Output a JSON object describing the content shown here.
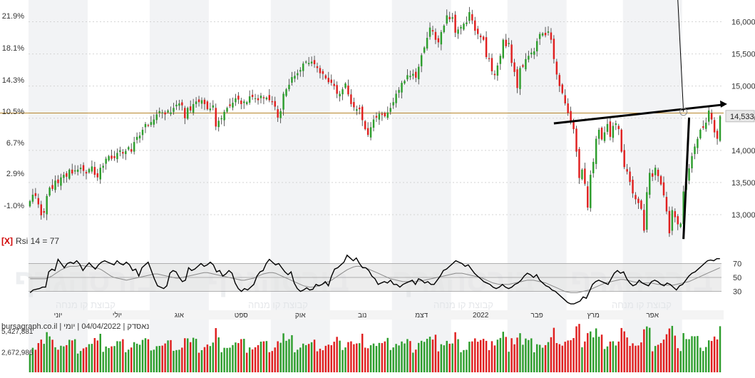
{
  "chart_data": {
    "type": "candlestick",
    "title": "",
    "watermark_lines": [
      "בורסהגרף",
      "קבוצת קו מנחה"
    ],
    "colors": {
      "up": "#2e9e2e",
      "down": "#e02020",
      "wick": "#333333",
      "band_fill": "#e6e6e6",
      "price_line": "#b8862b",
      "rsi_line": "#000000",
      "rsi_ma_line": "#8a8a8a",
      "trendline": "#000000",
      "axis_text": "#333333",
      "month_band": "#f2f3f5"
    },
    "price_panel": {
      "right_axis": {
        "min": 12700,
        "max": 16250,
        "ticks": [
          "16,000",
          "15,500",
          "15,000",
          "14,500",
          "14,000",
          "13,500",
          "13,000"
        ]
      },
      "left_axis_ticks": [
        "21.9%",
        "18.1%",
        "14.3%",
        "10.5%",
        "6.7%",
        "2.9%",
        "-1.0%"
      ],
      "last_price_label": "14,533",
      "reference_line_value": 14580,
      "trendline_up": {
        "from": {
          "bar": 186,
          "price": 14420
        },
        "to": {
          "bar": 246,
          "price": 14710
        }
      },
      "trendline_vertical": {
        "from": {
          "bar": 232,
          "price": 12620
        },
        "to": {
          "bar": 234,
          "price": 14510
        }
      },
      "trendline_thin": {
        "from": {
          "bar": 230,
          "price": 16350
        },
        "to": {
          "bar": 232,
          "price": 14600
        }
      },
      "closes": [
        13210,
        13310,
        13290,
        13160,
        12990,
        13030,
        13290,
        13420,
        13400,
        13530,
        13490,
        13580,
        13620,
        13590,
        13700,
        13640,
        13690,
        13700,
        13730,
        13680,
        13640,
        13710,
        13750,
        13620,
        13580,
        13730,
        13760,
        13870,
        13910,
        13870,
        13880,
        13960,
        14000,
        13950,
        13990,
        14050,
        13980,
        14130,
        14210,
        14230,
        14320,
        14410,
        14380,
        14440,
        14480,
        14560,
        14610,
        14590,
        14560,
        14620,
        14590,
        14660,
        14710,
        14730,
        14700,
        14500,
        14660,
        14620,
        14720,
        14760,
        14750,
        14780,
        14720,
        14640,
        14650,
        14700,
        14370,
        14460,
        14500,
        14600,
        14660,
        14690,
        14740,
        14810,
        14790,
        14720,
        14760,
        14750,
        14840,
        14830,
        14810,
        14780,
        14850,
        14810,
        14820,
        14780,
        14750,
        14680,
        14510,
        14610,
        14880,
        14950,
        15020,
        15140,
        15160,
        15200,
        15250,
        15350,
        15380,
        15360,
        15380,
        15340,
        15280,
        15200,
        15190,
        15120,
        15060,
        15050,
        15000,
        14880,
        14880,
        14950,
        15040,
        14870,
        14720,
        14670,
        14640,
        14640,
        14470,
        14330,
        14240,
        14360,
        14480,
        14510,
        14570,
        14550,
        14530,
        14590,
        14660,
        14750,
        14880,
        14940,
        15050,
        15080,
        15170,
        15160,
        15190,
        15130,
        15300,
        15480,
        15600,
        15750,
        15910,
        15850,
        15720,
        15680,
        15840,
        15940,
        16100,
        16040,
        16070,
        15830,
        15880,
        15920,
        15970,
        15990,
        16150,
        16020,
        15860,
        15810,
        15760,
        15720,
        15450,
        15420,
        15230,
        15170,
        15320,
        15470,
        15720,
        15620,
        15670,
        15360,
        15220,
        14970,
        15280,
        15300,
        15420,
        15470,
        15520,
        15540,
        15700,
        15810,
        15820,
        15790,
        15850,
        15720,
        15420,
        15180,
        15000,
        14890,
        14730,
        14580,
        14460,
        14330,
        13980,
        13570,
        13700,
        13480,
        13110,
        13620,
        13820,
        14180,
        14320,
        14170,
        14280,
        14410,
        14210,
        14380,
        14420,
        14330,
        13980,
        13740,
        13670,
        13510,
        13330,
        13240,
        13180,
        13090,
        12750,
        13350,
        13650,
        13590,
        13730,
        13600,
        13470,
        13300,
        13050,
        12710,
        13070,
        12960,
        12850,
        12860,
        13360,
        13560,
        13720,
        13910,
        14060,
        14180,
        14320,
        14350,
        14430,
        14620,
        14480,
        14280,
        14180,
        14533
      ]
    },
    "rsi_panel": {
      "label": "Rsi 14 = 77",
      "close_box_label": "[X]",
      "axis_min": 10,
      "axis_max": 90,
      "ticks": [
        "70",
        "50",
        "30"
      ],
      "band_low": 30,
      "band_high": 70,
      "values": [
        28,
        32,
        33,
        34,
        36,
        36,
        58,
        62,
        60,
        76,
        70,
        64,
        70,
        72,
        70,
        74,
        69,
        60,
        66,
        71,
        66,
        62,
        68,
        72,
        74,
        72,
        70,
        68,
        74,
        70,
        68,
        72,
        68,
        60,
        62,
        52,
        64,
        68,
        72,
        60,
        48,
        38,
        36,
        34,
        38,
        56,
        60,
        58,
        50,
        44,
        46,
        64,
        60,
        62,
        66,
        70,
        66,
        68,
        72,
        68,
        58,
        60,
        52,
        55,
        60,
        56,
        42,
        34,
        30,
        34,
        32,
        36,
        40,
        52,
        58,
        60,
        70,
        76,
        72,
        68,
        70,
        64,
        58,
        54,
        58,
        42,
        34,
        30,
        32,
        35,
        32,
        33,
        40,
        38,
        40,
        44,
        38,
        52,
        62,
        64,
        68,
        72,
        82,
        78,
        74,
        78,
        70,
        64,
        64,
        60,
        52,
        48,
        40,
        42,
        44,
        42,
        46,
        40,
        40,
        36,
        40,
        42,
        44,
        46,
        40,
        48,
        46,
        42,
        44,
        40,
        40,
        46,
        52,
        60,
        62,
        66,
        70,
        74,
        72,
        70,
        66,
        68,
        62,
        56,
        52,
        48,
        44,
        42,
        40,
        36,
        34,
        36,
        40,
        36,
        34,
        36,
        40,
        42,
        46,
        52,
        56,
        54,
        50,
        54,
        46,
        42,
        38,
        36,
        32,
        30,
        26,
        22,
        18,
        14,
        12,
        12,
        14,
        16,
        22,
        20,
        30,
        40,
        44,
        46,
        44,
        42,
        40,
        48,
        56,
        60,
        56,
        58,
        48,
        42,
        38,
        40,
        46,
        42,
        40,
        38,
        44,
        46,
        44,
        40,
        38,
        42,
        40,
        36,
        32,
        38,
        40,
        46,
        52,
        56,
        58,
        62,
        66,
        70,
        74,
        75,
        74,
        77,
        77
      ],
      "ma_values": [
        48,
        48,
        48,
        48,
        48,
        48,
        50,
        52,
        55,
        58,
        61,
        63,
        65,
        66,
        66,
        66,
        67,
        67,
        66,
        66,
        65,
        64,
        63,
        61,
        58,
        55,
        52,
        50,
        49,
        48,
        47,
        46,
        47,
        48,
        49,
        50,
        51,
        52,
        53,
        54,
        55,
        55,
        54,
        53,
        52,
        51,
        50,
        49,
        49,
        50,
        51,
        52,
        53,
        54,
        55,
        56,
        57,
        57,
        56,
        55,
        54,
        53,
        52,
        51,
        50,
        49,
        48,
        47,
        46,
        46,
        47,
        48,
        49,
        51,
        53,
        55,
        56,
        57,
        57,
        56,
        54,
        52,
        50,
        48,
        46,
        44,
        42,
        40,
        38,
        37,
        36,
        36,
        37,
        38,
        40,
        42,
        44,
        46,
        49,
        52,
        55,
        58,
        61,
        63,
        65,
        66,
        66,
        65,
        64,
        62,
        60,
        58,
        56,
        54,
        52,
        50,
        48,
        47,
        46,
        45,
        44,
        44,
        44,
        44,
        44,
        45,
        45,
        46,
        47,
        48,
        49,
        50,
        51,
        52,
        53,
        54,
        55,
        56,
        56,
        56,
        55,
        54,
        53,
        52,
        51,
        50,
        48,
        46,
        44,
        42,
        41,
        40,
        40,
        40,
        40,
        41,
        42,
        43,
        44,
        45,
        46,
        46,
        46,
        45,
        44,
        43,
        42,
        40,
        38,
        36,
        34,
        32,
        30,
        29,
        28,
        28,
        28,
        29,
        30,
        31,
        32,
        34,
        36,
        38,
        40,
        42,
        43,
        44,
        45,
        46,
        47,
        47,
        46,
        45,
        44,
        43,
        43,
        42,
        42,
        42,
        42,
        41,
        40,
        40,
        40,
        39,
        39,
        39,
        40,
        41,
        42,
        43,
        44,
        46,
        48,
        50,
        52,
        54,
        56,
        58,
        60,
        62,
        64
      ]
    },
    "x_axis": {
      "labels": [
        {
          "text": "יוני",
          "bar": 10
        },
        {
          "text": "יולי",
          "bar": 31
        },
        {
          "text": "אוג",
          "bar": 53
        },
        {
          "text": "ספט",
          "bar": 75
        },
        {
          "text": "אוק",
          "bar": 96
        },
        {
          "text": "נוב",
          "bar": 118
        },
        {
          "text": "דצמ",
          "bar": 139
        },
        {
          "text": "2022",
          "bar": 160
        },
        {
          "text": "פבר",
          "bar": 180
        },
        {
          "text": "מרץ",
          "bar": 200
        },
        {
          "text": "אפר",
          "bar": 221
        }
      ]
    },
    "volume_panel": {
      "info_text": "bursagraph.co.il | נאסדק | 04/04/2022 | יומי",
      "ticks": [
        "5,427,881",
        "2,672,986"
      ],
      "max": 6000000
    }
  }
}
